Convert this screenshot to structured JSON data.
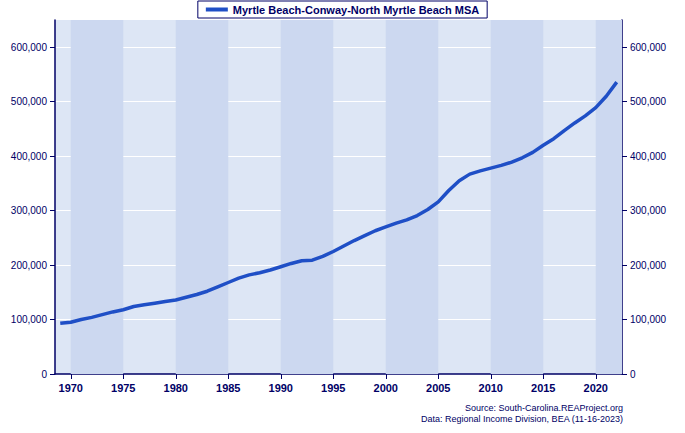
{
  "chart_data": {
    "type": "line",
    "series": [
      {
        "name": "Myrtle Beach-Conway-North Myrtle Beach MSA",
        "color": "#1f4fc6",
        "values": [
          93000,
          95000,
          100000,
          104000,
          109000,
          114000,
          118000,
          124000,
          127000,
          130000,
          133000,
          136000,
          141000,
          146000,
          152000,
          160000,
          168000,
          176000,
          182000,
          186000,
          191000,
          197000,
          203000,
          208000,
          209000,
          216000,
          225000,
          235000,
          245000,
          254000,
          263000,
          270000,
          277000,
          283000,
          291000,
          302000,
          316000,
          337000,
          355000,
          367000,
          373000,
          378000,
          383000,
          389000,
          397000,
          407000,
          420000,
          432000,
          447000,
          461000,
          474000,
          489000,
          510000,
          536000
        ]
      }
    ],
    "x": [
      1969,
      1970,
      1971,
      1972,
      1973,
      1974,
      1975,
      1976,
      1977,
      1978,
      1979,
      1980,
      1981,
      1982,
      1983,
      1984,
      1985,
      1986,
      1987,
      1988,
      1989,
      1990,
      1991,
      1992,
      1993,
      1994,
      1995,
      1996,
      1997,
      1998,
      1999,
      2000,
      2001,
      2002,
      2003,
      2004,
      2005,
      2006,
      2007,
      2008,
      2009,
      2010,
      2011,
      2012,
      2013,
      2014,
      2015,
      2016,
      2017,
      2018,
      2019,
      2020,
      2021,
      2022
    ],
    "xlim": [
      1968.5,
      2022.5
    ],
    "xticks": [
      1970,
      1975,
      1980,
      1985,
      1990,
      1995,
      2000,
      2005,
      2010,
      2015,
      2020
    ],
    "ylim": [
      0,
      650000
    ],
    "yticks": [
      0,
      {
        "value": 100000,
        "label": "100,000"
      },
      {
        "value": 200000,
        "label": "200,000"
      },
      {
        "value": 300000,
        "label": "300,000"
      },
      {
        "value": 400000,
        "label": "400,000"
      },
      {
        "value": 500000,
        "label": "500,000"
      },
      {
        "value": 600000,
        "label": "600,000"
      }
    ],
    "y2lim": [
      0,
      650000
    ],
    "y2ticks": [
      0,
      {
        "value": 100000,
        "label": "100,000"
      },
      {
        "value": 200000,
        "label": "200,000"
      },
      {
        "value": 300000,
        "label": "300,000"
      },
      {
        "value": 400000,
        "label": "400,000"
      },
      {
        "value": 500000,
        "label": "500,000"
      },
      {
        "value": 600000,
        "label": "600,000"
      }
    ],
    "grid": true,
    "legend": "top",
    "annotations": [
      "Source: South-Carolina.REAProject.org",
      "Data: Regional Income Division, BEA (11-16-2023)"
    ]
  }
}
